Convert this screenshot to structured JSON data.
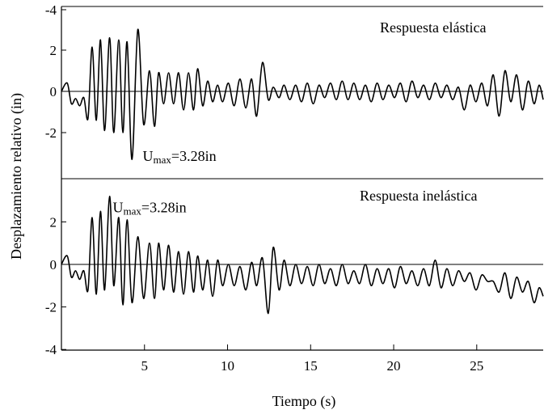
{
  "chart_data": [
    {
      "type": "line",
      "title": "Respuesta elástica",
      "xlabel": "Tiempo (s)",
      "ylabel": "Desplazamiento relativo (in)",
      "xlim": [
        0,
        29
      ],
      "ylim": [
        -4,
        4
      ],
      "y_inverted": true,
      "yticks": [
        -4,
        2,
        0,
        -2
      ],
      "annotation": {
        "text_main": "U",
        "text_sub": "max",
        "text_rest": "=3.28in",
        "x": 4.6,
        "y": -3.3
      },
      "series": [
        {
          "x": [
            0.0,
            0.35,
            0.6,
            0.85,
            1.1,
            1.35,
            1.6,
            1.85,
            2.1,
            2.35,
            2.6,
            2.9,
            3.15,
            3.45,
            3.7,
            3.95,
            4.25,
            4.6,
            4.95,
            5.3,
            5.6,
            5.85,
            6.15,
            6.45,
            6.75,
            7.05,
            7.35,
            7.65,
            7.95,
            8.2,
            8.5,
            8.8,
            9.1,
            9.4,
            9.7,
            10.05,
            10.4,
            10.75,
            11.1,
            11.45,
            11.75,
            12.1,
            12.45,
            12.75,
            13.1,
            13.4,
            13.75,
            14.1,
            14.45,
            14.8,
            15.15,
            15.5,
            15.85,
            16.2,
            16.55,
            16.9,
            17.25,
            17.6,
            17.95,
            18.3,
            18.65,
            19.0,
            19.35,
            19.7,
            20.05,
            20.4,
            20.75,
            21.1,
            21.45,
            21.8,
            22.15,
            22.5,
            22.85,
            23.2,
            23.55,
            23.9,
            24.25,
            24.6,
            24.95,
            25.3,
            25.65,
            26.0,
            26.35,
            26.7,
            27.05,
            27.4,
            27.75,
            28.1,
            28.45,
            28.75,
            29.0
          ],
          "y": [
            0.0,
            0.4,
            -0.6,
            -0.35,
            -0.7,
            -0.3,
            -1.3,
            2.15,
            -1.4,
            2.5,
            -1.9,
            2.6,
            -2.0,
            2.5,
            -2.0,
            2.4,
            -3.3,
            3.0,
            -1.6,
            1.0,
            -1.7,
            0.9,
            -0.6,
            0.9,
            -0.6,
            0.9,
            -0.9,
            0.9,
            -0.9,
            1.1,
            -0.7,
            0.5,
            -0.5,
            0.3,
            -0.5,
            0.4,
            -0.7,
            0.6,
            -0.8,
            0.6,
            -1.2,
            1.4,
            -0.4,
            0.2,
            -0.3,
            0.3,
            -0.4,
            0.3,
            -0.5,
            0.4,
            -0.6,
            0.3,
            -0.3,
            0.4,
            -0.4,
            0.5,
            -0.4,
            0.4,
            -0.4,
            0.3,
            -0.5,
            0.4,
            -0.4,
            0.3,
            -0.3,
            0.4,
            -0.5,
            0.5,
            -0.3,
            0.3,
            -0.4,
            0.4,
            -0.3,
            0.3,
            -0.4,
            0.2,
            -0.9,
            0.3,
            -0.5,
            0.4,
            -0.7,
            0.8,
            -1.2,
            1.0,
            -0.5,
            0.8,
            -0.9,
            0.5,
            -0.6,
            0.3,
            -0.4
          ]
        }
      ]
    },
    {
      "type": "line",
      "title": "Respuesta inelástica",
      "xlabel": "Tiempo (s)",
      "ylabel": "Desplazamiento relativo (in)",
      "xlim": [
        0,
        29
      ],
      "ylim": [
        -4,
        4
      ],
      "yticks": [
        2,
        0,
        -2,
        -4
      ],
      "xticks": [
        5,
        10,
        15,
        20,
        25
      ],
      "annotation": {
        "text_main": "U",
        "text_sub": "max",
        "text_rest": "=3.28in",
        "x": 2.8,
        "y": 2.6
      },
      "series": [
        {
          "x": [
            0.0,
            0.35,
            0.6,
            0.85,
            1.1,
            1.35,
            1.6,
            1.85,
            2.1,
            2.35,
            2.6,
            2.9,
            3.15,
            3.45,
            3.7,
            3.95,
            4.25,
            4.6,
            4.95,
            5.3,
            5.6,
            5.85,
            6.15,
            6.45,
            6.75,
            7.05,
            7.35,
            7.65,
            7.95,
            8.2,
            8.5,
            8.8,
            9.1,
            9.4,
            9.7,
            10.05,
            10.4,
            10.75,
            11.1,
            11.45,
            11.75,
            12.1,
            12.45,
            12.75,
            13.1,
            13.4,
            13.75,
            14.1,
            14.45,
            14.8,
            15.15,
            15.5,
            15.85,
            16.2,
            16.55,
            16.9,
            17.25,
            17.6,
            17.95,
            18.3,
            18.65,
            19.0,
            19.35,
            19.7,
            20.05,
            20.4,
            20.75,
            21.1,
            21.45,
            21.8,
            22.15,
            22.5,
            22.85,
            23.2,
            23.55,
            23.9,
            24.25,
            24.6,
            24.95,
            25.3,
            25.65,
            26.0,
            26.35,
            26.7,
            27.05,
            27.4,
            27.75,
            28.1,
            28.45,
            28.75,
            29.0
          ],
          "y": [
            0.0,
            0.4,
            -0.6,
            -0.3,
            -0.7,
            -0.3,
            -1.2,
            2.2,
            -1.4,
            2.5,
            -1.2,
            3.2,
            -1.0,
            2.2,
            -1.9,
            2.1,
            -1.8,
            1.3,
            -1.6,
            1.0,
            -1.6,
            1.0,
            -1.2,
            0.9,
            -1.3,
            0.6,
            -1.4,
            0.6,
            -1.3,
            0.4,
            -1.2,
            0.2,
            -1.5,
            0.2,
            -1.0,
            0.0,
            -1.0,
            -0.1,
            -1.2,
            0.1,
            -1.0,
            0.3,
            -2.3,
            0.8,
            -1.2,
            0.2,
            -1.0,
            0.0,
            -0.9,
            -0.1,
            -1.0,
            0.0,
            -0.9,
            -0.2,
            -1.0,
            0.0,
            -0.9,
            -0.3,
            -0.9,
            0.0,
            -1.0,
            -0.2,
            -0.9,
            -0.2,
            -1.1,
            -0.1,
            -0.9,
            -0.3,
            -1.0,
            -0.2,
            -1.0,
            0.2,
            -1.1,
            -0.2,
            -1.0,
            -0.3,
            -0.8,
            -0.4,
            -1.2,
            -0.5,
            -0.8,
            -0.8,
            -1.3,
            -0.4,
            -1.6,
            -0.6,
            -1.3,
            -0.8,
            -1.8,
            -1.1,
            -1.5
          ]
        }
      ]
    }
  ]
}
